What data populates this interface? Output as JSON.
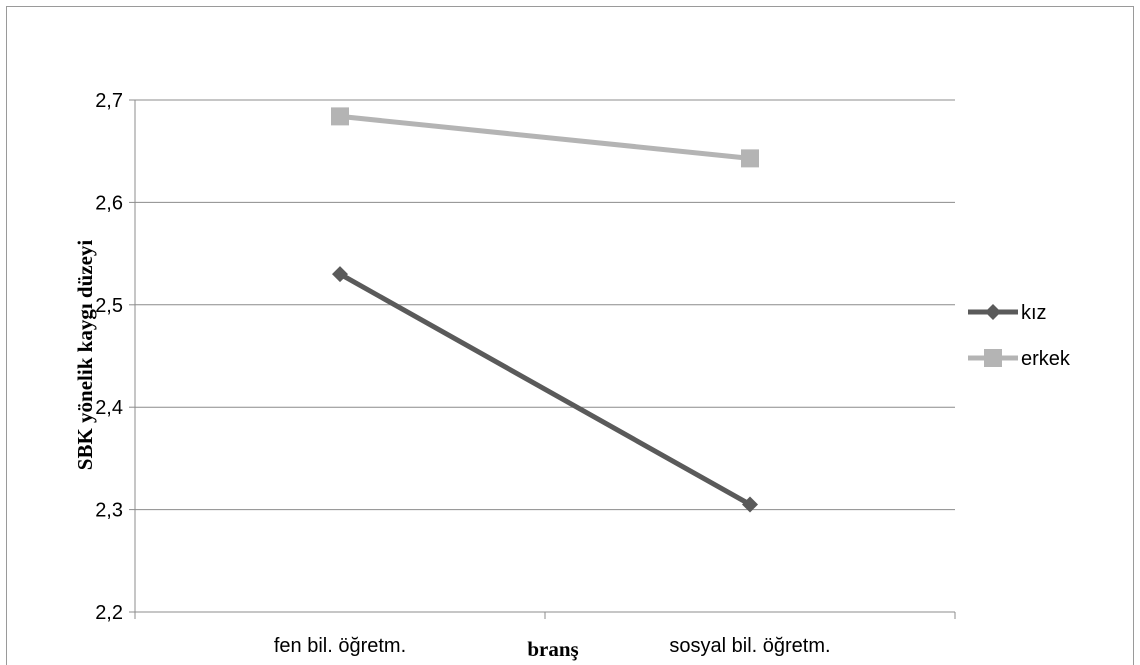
{
  "chart_data": {
    "type": "line",
    "title": "",
    "xlabel": "branş",
    "ylabel": "SBK yönelik kaygı düzeyi",
    "categories": [
      "fen bil. öğretm.",
      "sosyal bil. öğretm."
    ],
    "ylim": [
      2.2,
      2.7
    ],
    "yticks": [
      2.2,
      2.3,
      2.4,
      2.5,
      2.6,
      2.7
    ],
    "ytick_labels": [
      "2,2",
      "2,3",
      "2,4",
      "2,5",
      "2,6",
      "2,7"
    ],
    "grid": true,
    "legend_position": "right",
    "series": [
      {
        "name": "kız",
        "values": [
          2.53,
          2.305
        ],
        "color": "#5a5a5a",
        "marker": "diamond"
      },
      {
        "name": "erkek",
        "values": [
          2.684,
          2.643
        ],
        "color": "#b4b4b4",
        "marker": "square"
      }
    ]
  }
}
